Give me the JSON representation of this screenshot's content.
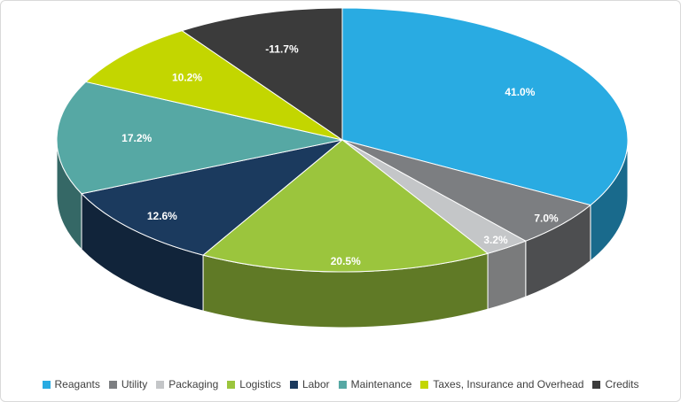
{
  "chart_data": {
    "type": "pie",
    "style": "3d",
    "title": "",
    "legend_position": "bottom",
    "direction": "clockwise",
    "start_angle_deg": 0,
    "label_color": "#FFFFFF",
    "background": "#FFFFFF",
    "border_color": "#D9D9D9",
    "slices": [
      {
        "label": "Reagants",
        "value": 41.0,
        "display": "41.0%",
        "color": "#29ABE2"
      },
      {
        "label": "Utility",
        "value": 7.0,
        "display": "7.0%",
        "color": "#7C7E81"
      },
      {
        "label": "Packaging",
        "value": 3.2,
        "display": "3.2%",
        "color": "#C4C6C8"
      },
      {
        "label": "Logistics",
        "value": 20.5,
        "display": "20.5%",
        "color": "#9BC53D"
      },
      {
        "label": "Labor",
        "value": 12.6,
        "display": "12.6%",
        "color": "#1B3A5E"
      },
      {
        "label": "Maintenance",
        "value": 17.2,
        "display": "17.2%",
        "color": "#56A8A4"
      },
      {
        "label": "Taxes, Insurance and Overhead",
        "value": 10.2,
        "display": "10.2%",
        "color": "#C3D600"
      },
      {
        "label": "Credits",
        "value": -11.7,
        "display": "-11.7%",
        "color": "#3B3B3B"
      }
    ]
  }
}
